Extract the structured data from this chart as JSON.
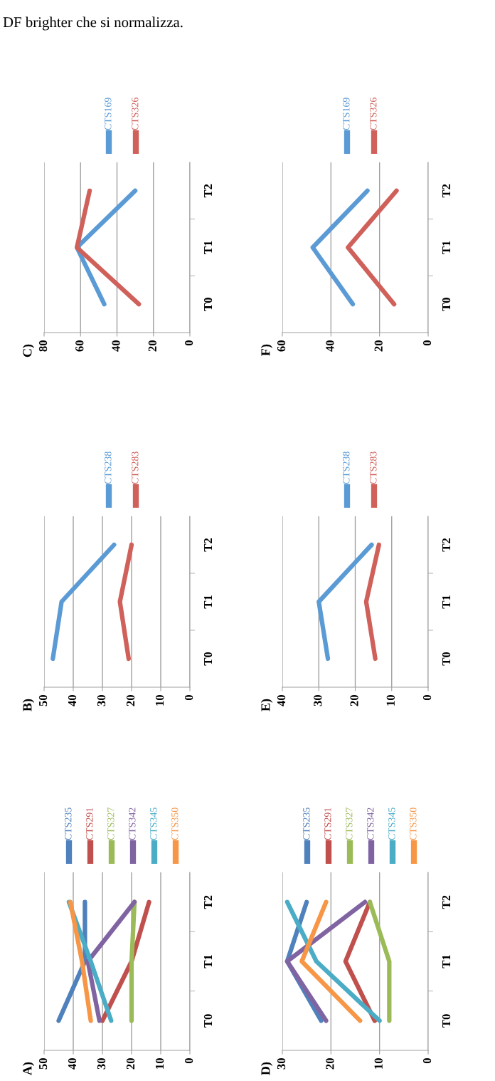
{
  "chart_data": [
    {
      "type": "line",
      "orientation": "horizontal",
      "title": "A)",
      "annotations": [
        "DF brighter che si normalizza."
      ],
      "categories": [
        "T2",
        "T1",
        "T0"
      ],
      "xlim": [
        50,
        0
      ],
      "xticks": [
        50,
        40,
        30,
        20,
        10,
        0
      ],
      "grid": "x",
      "legend": "top",
      "series": [
        {
          "name": "CTS235",
          "color": "#4f81bd",
          "values": [
            36,
            36,
            45
          ]
        },
        {
          "name": "CTS291",
          "color": "#c0504d",
          "values": [
            14,
            20,
            30
          ]
        },
        {
          "name": "CTS327",
          "color": "#9bbb59",
          "values": [
            19,
            20,
            20
          ]
        },
        {
          "name": "CTS342",
          "color": "#8064a2",
          "values": [
            19,
            35,
            31
          ]
        },
        {
          "name": "CTS345",
          "color": "#4bacc6",
          "values": [
            41.5,
            34,
            27
          ]
        },
        {
          "name": "CTS350",
          "color": "#f79646",
          "values": [
            41,
            37,
            34
          ]
        }
      ]
    },
    {
      "type": "line",
      "orientation": "horizontal",
      "title": "B)",
      "categories": [
        "T2",
        "T1",
        "T0"
      ],
      "xlim": [
        50,
        0
      ],
      "xticks": [
        50,
        40,
        30,
        20,
        10,
        0
      ],
      "grid": "x",
      "legend": "top",
      "series": [
        {
          "name": "CTS238",
          "color": "#5b9bd5",
          "values": [
            26,
            44,
            47
          ]
        },
        {
          "name": "CTS283",
          "color": "#d0605a",
          "values": [
            20,
            24,
            21
          ]
        }
      ]
    },
    {
      "type": "line",
      "orientation": "horizontal",
      "title": "C)",
      "categories": [
        "T2",
        "T1",
        "T0"
      ],
      "xlim": [
        80,
        0
      ],
      "xticks": [
        80,
        60,
        40,
        20,
        0
      ],
      "grid": "x",
      "legend": "top",
      "series": [
        {
          "name": "CTS169",
          "color": "#5b9bd5",
          "values": [
            30,
            62,
            47
          ]
        },
        {
          "name": "CTS326",
          "color": "#d0605a",
          "values": [
            55,
            62,
            28
          ]
        }
      ]
    },
    {
      "type": "line",
      "orientation": "horizontal",
      "title": "D)",
      "categories": [
        "T2",
        "T1",
        "T0"
      ],
      "xlim": [
        30,
        0
      ],
      "xticks": [
        30,
        20,
        10,
        0
      ],
      "grid": "x",
      "legend": "top",
      "series": [
        {
          "name": "CTS235",
          "color": "#4f81bd",
          "values": [
            25,
            29,
            22
          ]
        },
        {
          "name": "CTS291",
          "color": "#c0504d",
          "values": [
            12,
            17,
            11
          ]
        },
        {
          "name": "CTS327",
          "color": "#9bbb59",
          "values": [
            12,
            8,
            8
          ]
        },
        {
          "name": "CTS342",
          "color": "#8064a2",
          "values": [
            13,
            29,
            21
          ]
        },
        {
          "name": "CTS345",
          "color": "#4bacc6",
          "values": [
            29,
            23,
            10
          ]
        },
        {
          "name": "CTS350",
          "color": "#f79646",
          "values": [
            21,
            26,
            14
          ]
        }
      ]
    },
    {
      "type": "line",
      "orientation": "horizontal",
      "title": "E)",
      "categories": [
        "T2",
        "T1",
        "T0"
      ],
      "xlim": [
        40,
        0
      ],
      "xticks": [
        40,
        30,
        20,
        10,
        0
      ],
      "grid": "x",
      "legend": "top",
      "series": [
        {
          "name": "CTS238",
          "color": "#5b9bd5",
          "values": [
            15.5,
            30,
            27.5
          ]
        },
        {
          "name": "CTS283",
          "color": "#d0605a",
          "values": [
            13.5,
            17,
            14.5
          ]
        }
      ]
    },
    {
      "type": "line",
      "orientation": "horizontal",
      "title": "F)",
      "categories": [
        "T2",
        "T1",
        "T0"
      ],
      "xlim": [
        60,
        0
      ],
      "xticks": [
        60,
        40,
        20,
        0
      ],
      "grid": "x",
      "legend": "top",
      "series": [
        {
          "name": "CTS169",
          "color": "#5b9bd5",
          "values": [
            25,
            47.5,
            31
          ]
        },
        {
          "name": "CTS326",
          "color": "#d0605a",
          "values": [
            13,
            33,
            14
          ]
        }
      ]
    }
  ]
}
